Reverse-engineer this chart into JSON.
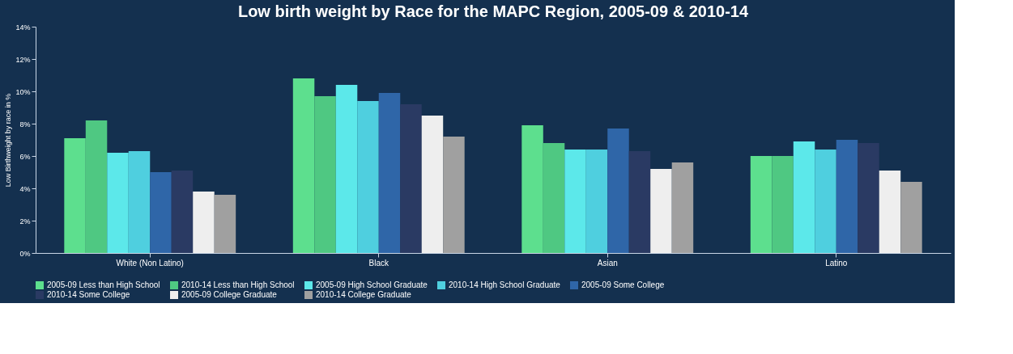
{
  "chart_data": {
    "type": "bar",
    "title": "Low birth weight by Race for the MAPC Region, 2005-09 & 2010-14",
    "ylabel": "Low Birthweight by race in %",
    "categories": [
      "White (Non Latino)",
      "Black",
      "Asian",
      "Latino"
    ],
    "series": [
      {
        "name": "2005-09 Less than High School",
        "color": "#5ddf8e",
        "values": [
          7.1,
          10.8,
          7.9,
          6.0
        ]
      },
      {
        "name": "2010-14 Less than High School",
        "color": "#4fc882",
        "values": [
          8.2,
          9.7,
          6.8,
          6.0
        ]
      },
      {
        "name": "2005-09 High School Graduate",
        "color": "#5ce8ea",
        "values": [
          6.2,
          10.4,
          6.4,
          6.9
        ]
      },
      {
        "name": "2010-14 High School Graduate",
        "color": "#4fcfdf",
        "values": [
          6.3,
          9.4,
          6.4,
          6.4
        ]
      },
      {
        "name": "2005-09 Some College",
        "color": "#2f66a8",
        "values": [
          5.0,
          9.9,
          7.7,
          7.0
        ]
      },
      {
        "name": "2010-14 Some College",
        "color": "#2a3a63",
        "values": [
          5.1,
          9.2,
          6.3,
          6.8
        ]
      },
      {
        "name": "2005-09 College Graduate",
        "color": "#eeeeee",
        "values": [
          3.8,
          8.5,
          5.2,
          5.1
        ]
      },
      {
        "name": "2010-14 College Graduate",
        "color": "#a0a0a0",
        "values": [
          3.6,
          7.2,
          5.6,
          4.4
        ]
      }
    ],
    "ylim": [
      0,
      14
    ],
    "yticks": [
      {
        "value": 0,
        "label": "0%"
      },
      {
        "value": 2,
        "label": "2%"
      },
      {
        "value": 4,
        "label": "4%"
      },
      {
        "value": 6,
        "label": "6%"
      },
      {
        "value": 8,
        "label": "8%"
      },
      {
        "value": 10,
        "label": "10%"
      },
      {
        "value": 12,
        "label": "12%"
      },
      {
        "value": 14,
        "label": "14%"
      }
    ],
    "grid": false,
    "legend": "bottom"
  }
}
